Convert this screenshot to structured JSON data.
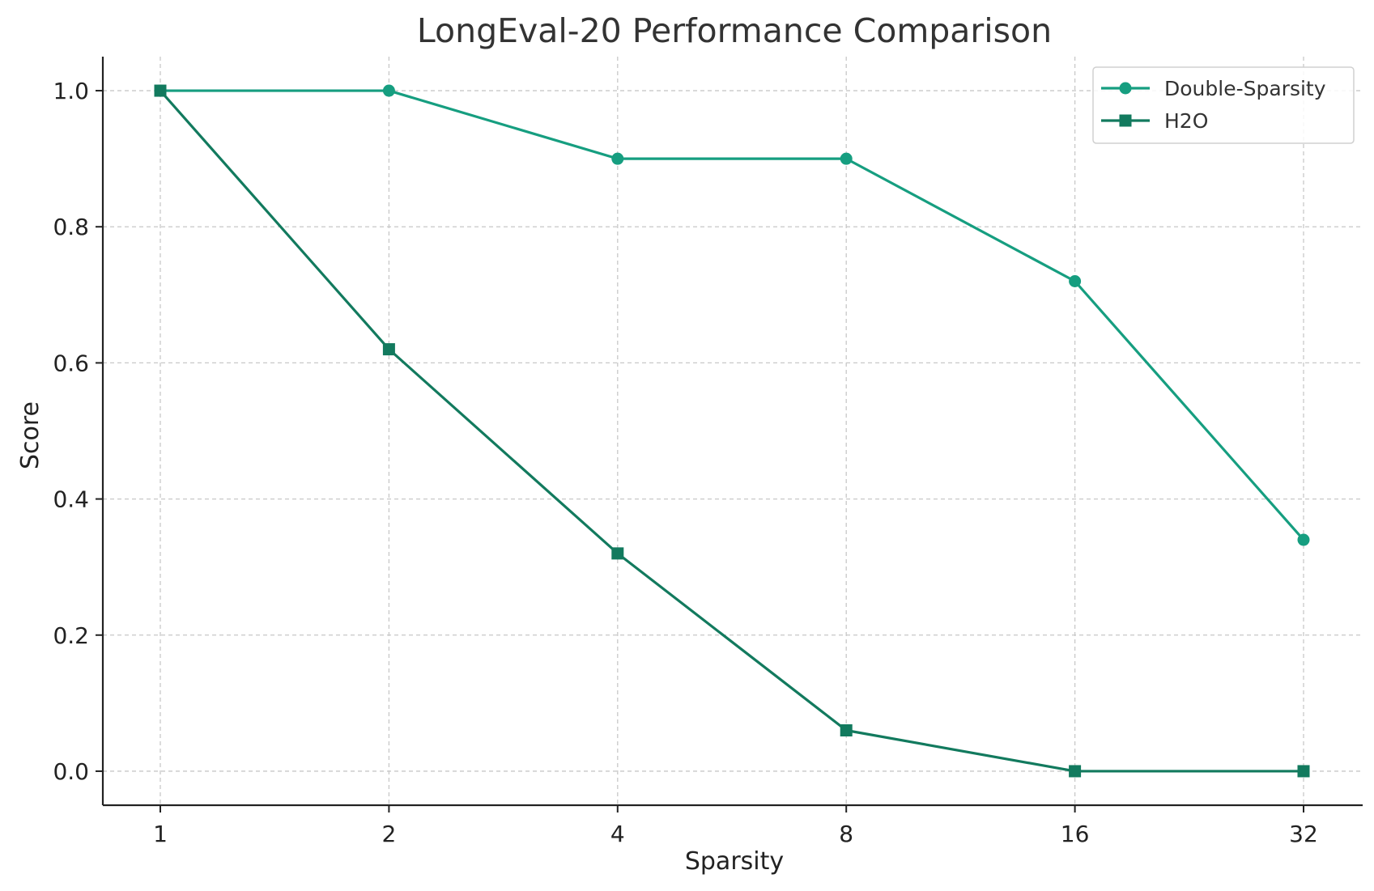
{
  "chart_data": {
    "type": "line",
    "title": "LongEval-20 Performance Comparison",
    "xlabel": "Sparsity",
    "ylabel": "Score",
    "x": [
      "1",
      "2",
      "4",
      "8",
      "16",
      "32"
    ],
    "yticks": [
      "0.0",
      "0.2",
      "0.4",
      "0.6",
      "0.8",
      "1.0"
    ],
    "ylim": [
      -0.05,
      1.05
    ],
    "grid": true,
    "legend_position": "top-right",
    "series": [
      {
        "name": "Double-Sparsity",
        "values": [
          1.0,
          1.0,
          0.9,
          0.9,
          0.72,
          0.34
        ],
        "color": "#169e80",
        "marker": "circle"
      },
      {
        "name": "H2O",
        "values": [
          1.0,
          0.62,
          0.32,
          0.06,
          0.0,
          0.0
        ],
        "color": "#127a5e",
        "marker": "square"
      }
    ]
  }
}
